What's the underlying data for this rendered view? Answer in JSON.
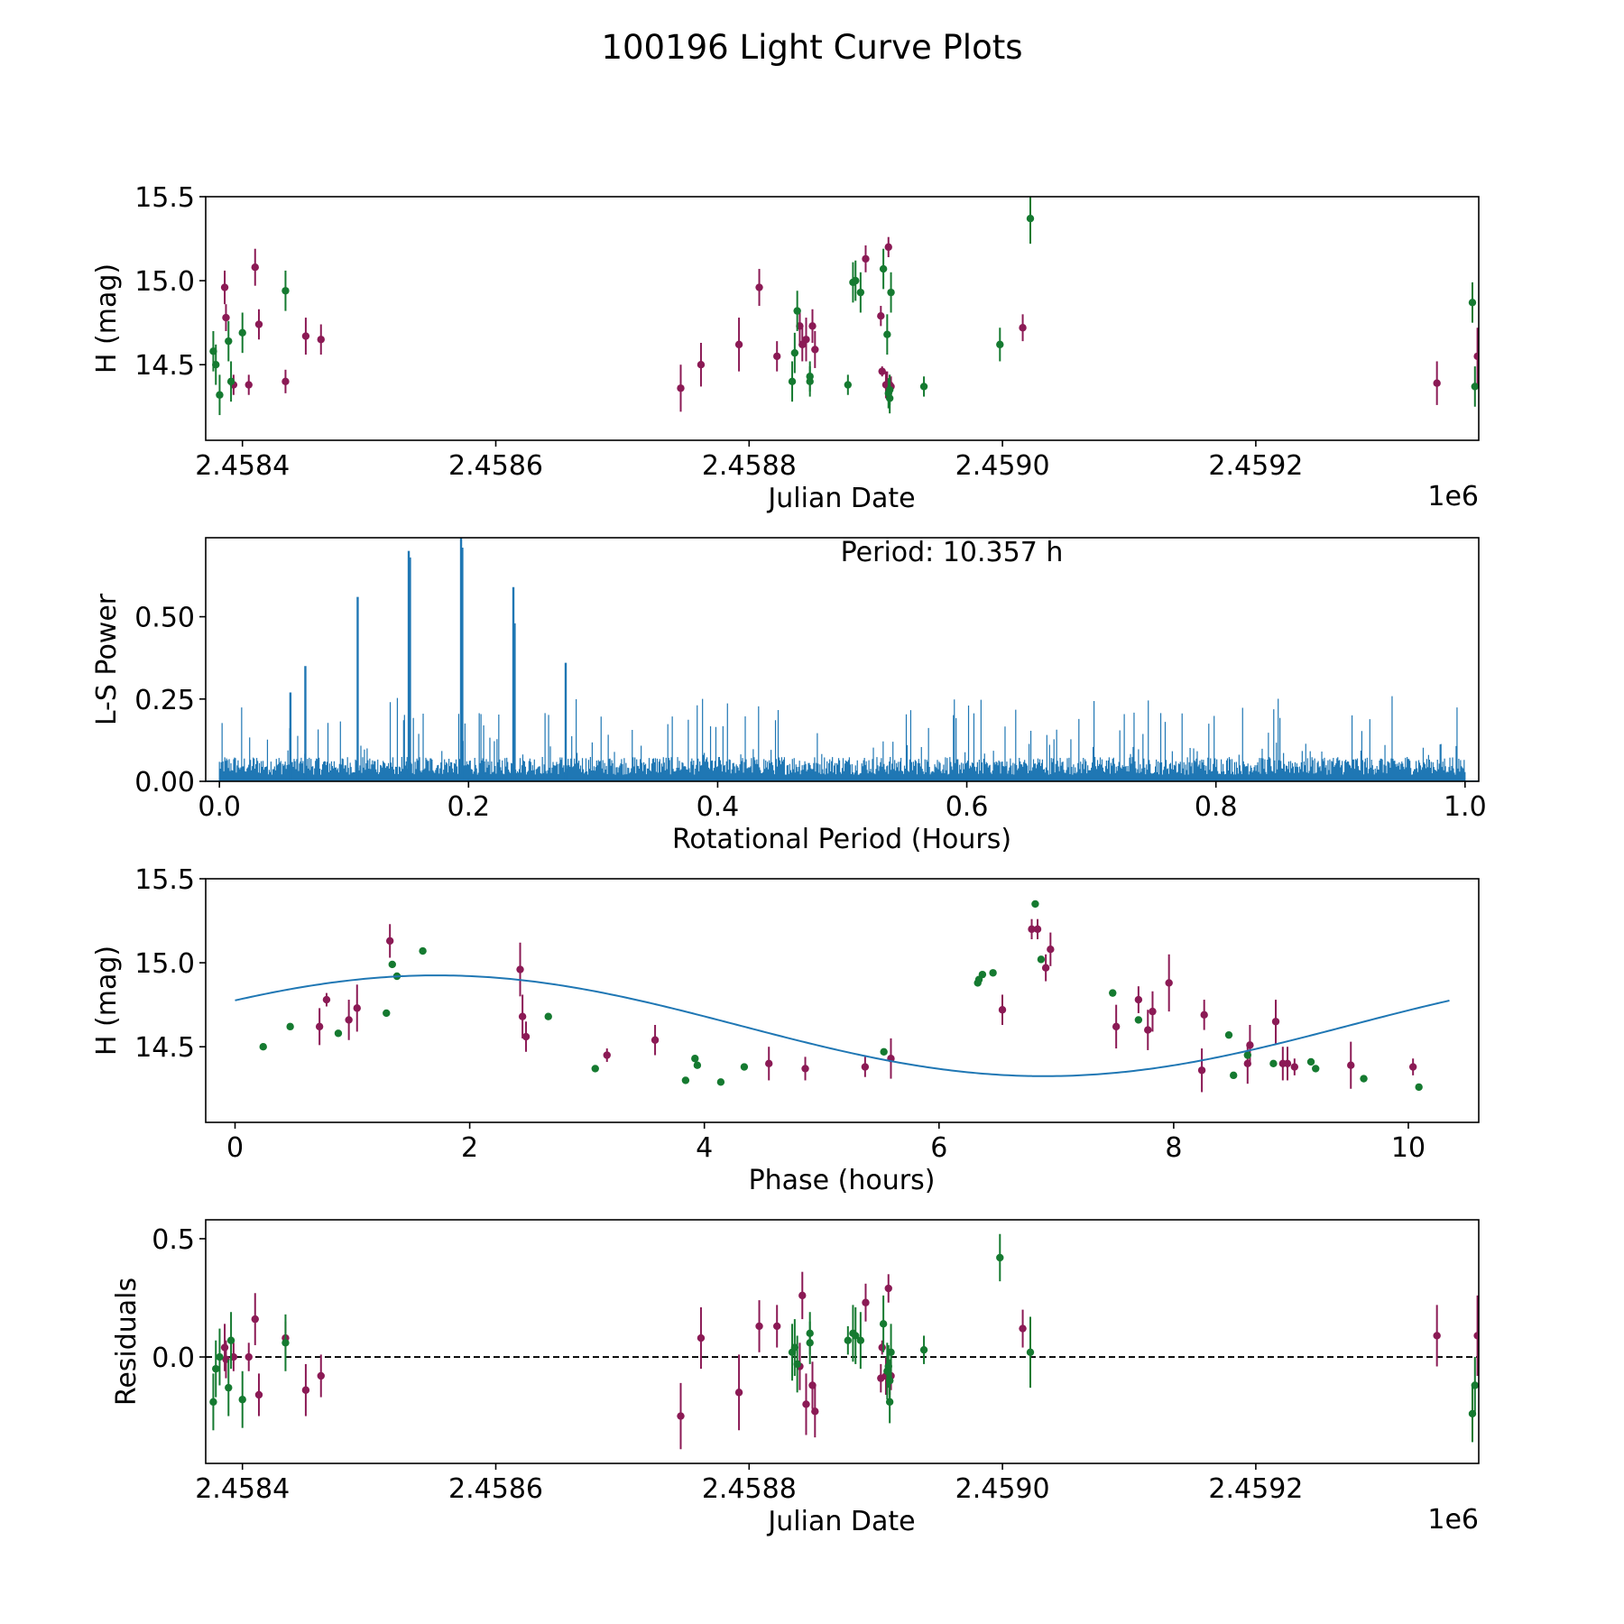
{
  "figure_title": "100196 Light Curve Plots",
  "colors": {
    "filter_a": "#8b1a55",
    "filter_b": "#157a30",
    "periodogram": "#1f77b4",
    "model": "#1f77b4",
    "zero_line": "#000000"
  },
  "chart_data": [
    {
      "id": "lightcurve",
      "type": "scatter",
      "xlabel": "Julian Date",
      "ylabel": "H (mag)",
      "x_offset_label": "1e6",
      "xlim": [
        2458371,
        2459376
      ],
      "ylim": [
        14.05,
        15.5
      ],
      "xticks": [
        2458400,
        2458600,
        2458800,
        2459000,
        2459200
      ],
      "xtick_labels": [
        "2.4584",
        "2.4586",
        "2.4588",
        "2.4590",
        "2.4592"
      ],
      "yticks": [
        14.5,
        15.0,
        15.5
      ],
      "ytick_labels": [
        "14.5",
        "15.0",
        "15.5"
      ],
      "series": [
        {
          "name": "filter A",
          "color": "#8b1a55",
          "x": [
            2458386,
            2458387,
            2458393,
            2458405,
            2458410,
            2458413,
            2458434,
            2458450,
            2458462,
            2458746,
            2458762,
            2458792,
            2458808,
            2458822,
            2458840,
            2458842,
            2458845,
            2458850,
            2458852,
            2458892,
            2458904,
            2458905,
            2458908,
            2458909,
            2458910,
            2458911,
            2458912,
            2459016,
            2459343,
            2459375,
            2459379,
            2459381,
            2459389,
            2459395,
            2459396,
            2459399,
            2459403,
            2459407
          ],
          "y": [
            14.96,
            14.78,
            14.38,
            14.38,
            15.08,
            14.74,
            14.4,
            14.67,
            14.65,
            14.36,
            14.5,
            14.62,
            14.96,
            14.55,
            14.73,
            14.62,
            14.65,
            14.73,
            14.59,
            15.13,
            14.79,
            14.46,
            14.38,
            14.38,
            15.2,
            14.38,
            14.37,
            14.72,
            14.39,
            14.55,
            14.75,
            14.39,
            14.4,
            14.44,
            14.41,
            14.89,
            14.5,
            14.51
          ],
          "err": [
            0.1,
            0.08,
            0.06,
            0.06,
            0.11,
            0.09,
            0.07,
            0.11,
            0.09,
            0.14,
            0.13,
            0.16,
            0.11,
            0.09,
            0.1,
            0.1,
            0.13,
            0.1,
            0.11,
            0.08,
            0.06,
            0.03,
            0.08,
            0.08,
            0.06,
            0.06,
            0.06,
            0.08,
            0.13,
            0.17,
            0.12,
            0.12,
            0.12,
            0.12,
            0.14,
            0.12,
            0.11,
            0.11
          ]
        },
        {
          "name": "filter B",
          "color": "#157a30",
          "x": [
            2458377,
            2458379,
            2458382,
            2458389,
            2458391,
            2458400,
            2458434,
            2458834,
            2458836,
            2458838,
            2458848,
            2458848,
            2458878,
            2458882,
            2458884,
            2458888,
            2458906,
            2458909,
            2458910,
            2458911,
            2458911,
            2458912,
            2458938,
            2458998,
            2459022,
            2459371,
            2459373,
            2459396,
            2459401
          ],
          "y": [
            14.58,
            14.5,
            14.32,
            14.64,
            14.4,
            14.69,
            14.94,
            14.4,
            14.57,
            14.82,
            14.43,
            14.4,
            14.38,
            14.99,
            15.0,
            14.93,
            15.07,
            14.68,
            14.33,
            14.35,
            14.3,
            14.93,
            14.37,
            14.62,
            15.37,
            14.87,
            14.37,
            14.26,
            14.31
          ],
          "err": [
            0.12,
            0.12,
            0.12,
            0.12,
            0.12,
            0.12,
            0.12,
            0.12,
            0.12,
            0.12,
            0.09,
            0.09,
            0.06,
            0.12,
            0.12,
            0.12,
            0.12,
            0.12,
            0.09,
            0.09,
            0.09,
            0.12,
            0.06,
            0.1,
            0.15,
            0.12,
            0.12,
            0.2,
            0.14
          ]
        }
      ]
    },
    {
      "id": "periodogram",
      "type": "line",
      "xlabel": "Rotational Period (Hours)",
      "ylabel": "L-S Power",
      "annotation": "Period: 10.357 h",
      "xlim": [
        -0.011,
        1.011
      ],
      "ylim": [
        0,
        0.74
      ],
      "xticks": [
        0.0,
        0.2,
        0.4,
        0.6,
        0.8,
        1.0
      ],
      "xtick_labels": [
        "0.0",
        "0.2",
        "0.4",
        "0.6",
        "0.8",
        "1.0"
      ],
      "yticks": [
        0.0,
        0.25,
        0.5
      ],
      "ytick_labels": [
        "0.00",
        "0.25",
        "0.50"
      ],
      "noise_floor": 0.08,
      "noise_max": 0.26,
      "peaks": {
        "x": [
          0.057,
          0.069,
          0.111,
          0.152,
          0.153,
          0.194,
          0.195,
          0.236,
          0.237,
          0.278
        ],
        "y": [
          0.27,
          0.35,
          0.56,
          0.7,
          0.68,
          0.74,
          0.71,
          0.59,
          0.48,
          0.36
        ]
      }
    },
    {
      "id": "phased",
      "type": "scatter",
      "xlabel": "Phase (hours)",
      "ylabel": "H (mag)",
      "xlim": [
        -0.25,
        10.6
      ],
      "ylim": [
        14.05,
        15.5
      ],
      "xticks": [
        0,
        2,
        4,
        6,
        8,
        10
      ],
      "xtick_labels": [
        "0",
        "2",
        "4",
        "6",
        "8",
        "10"
      ],
      "yticks": [
        14.5,
        15.0,
        15.5
      ],
      "ytick_labels": [
        "14.5",
        "15.0",
        "15.5"
      ],
      "model": {
        "period": 10.357,
        "mean": 14.625,
        "amp": 0.3,
        "peak_phase": 1.72,
        "x_range": [
          0,
          10.35
        ]
      },
      "series": [
        {
          "name": "filter A",
          "color": "#8b1a55",
          "x": [
            0.72,
            0.78,
            0.97,
            1.04,
            1.32,
            2.43,
            2.45,
            2.48,
            3.17,
            3.58,
            4.55,
            4.86,
            5.37,
            5.59,
            6.54,
            6.79,
            6.84,
            6.91,
            6.95,
            7.51,
            7.7,
            7.78,
            7.82,
            7.96,
            8.24,
            8.26,
            8.63,
            8.65,
            8.87,
            8.93,
            8.97,
            9.03,
            9.51,
            10.04
          ],
          "y": [
            14.62,
            14.78,
            14.66,
            14.73,
            15.13,
            14.96,
            14.68,
            14.56,
            14.45,
            14.54,
            14.4,
            14.37,
            14.38,
            14.43,
            14.72,
            15.2,
            15.2,
            14.97,
            15.08,
            14.62,
            14.78,
            14.6,
            14.71,
            14.88,
            14.36,
            14.69,
            14.4,
            14.51,
            14.65,
            14.4,
            14.4,
            14.38,
            14.39,
            14.38
          ],
          "err": [
            0.11,
            0.04,
            0.12,
            0.14,
            0.1,
            0.16,
            0.13,
            0.09,
            0.04,
            0.09,
            0.1,
            0.07,
            0.06,
            0.12,
            0.09,
            0.06,
            0.06,
            0.08,
            0.1,
            0.13,
            0.08,
            0.12,
            0.12,
            0.17,
            0.13,
            0.09,
            0.12,
            0.12,
            0.13,
            0.1,
            0.1,
            0.05,
            0.14,
            0.05
          ]
        },
        {
          "name": "filter B",
          "color": "#157a30",
          "x": [
            0.24,
            0.47,
            0.88,
            1.29,
            1.34,
            1.38,
            1.6,
            2.67,
            3.07,
            3.84,
            3.92,
            3.94,
            4.14,
            4.34,
            5.53,
            6.33,
            6.34,
            6.37,
            6.46,
            6.82,
            6.87,
            7.48,
            7.7,
            8.47,
            8.51,
            8.63,
            8.85,
            9.17,
            9.21,
            9.62,
            10.09
          ],
          "y": [
            14.5,
            14.62,
            14.58,
            14.7,
            14.99,
            14.92,
            15.07,
            14.68,
            14.37,
            14.3,
            14.43,
            14.39,
            14.29,
            14.38,
            14.47,
            14.88,
            14.9,
            14.93,
            14.94,
            15.35,
            15.02,
            14.82,
            14.66,
            14.57,
            14.33,
            14.45,
            14.4,
            14.41,
            14.37,
            14.31,
            14.26
          ]
        }
      ]
    },
    {
      "id": "residuals",
      "type": "scatter",
      "xlabel": "Julian Date",
      "ylabel": "Residuals",
      "x_offset_label": "1e6",
      "xlim": [
        2458371,
        2459376
      ],
      "ylim": [
        -0.45,
        0.58
      ],
      "xticks": [
        2458400,
        2458600,
        2458800,
        2459000,
        2459200
      ],
      "xtick_labels": [
        "2.4584",
        "2.4586",
        "2.4588",
        "2.4590",
        "2.4592"
      ],
      "yticks": [
        0.0,
        0.5
      ],
      "ytick_labels": [
        "0.0",
        "0.5"
      ],
      "zero_line": 0,
      "series": [
        {
          "name": "filter A",
          "color": "#8b1a55",
          "x": [
            2458386,
            2458387,
            2458393,
            2458405,
            2458410,
            2458413,
            2458434,
            2458450,
            2458462,
            2458746,
            2458762,
            2458792,
            2458808,
            2458822,
            2458840,
            2458842,
            2458845,
            2458850,
            2458852,
            2458892,
            2458904,
            2458905,
            2458908,
            2458909,
            2458910,
            2458911,
            2458912,
            2459016,
            2459343,
            2459375,
            2459379,
            2459381,
            2459389,
            2459395,
            2459396,
            2459399,
            2459403,
            2459407
          ],
          "y": [
            0.04,
            -0.01,
            0.0,
            0.0,
            0.16,
            -0.16,
            0.08,
            -0.14,
            -0.08,
            -0.25,
            0.08,
            -0.15,
            0.13,
            0.13,
            -0.04,
            0.26,
            -0.2,
            -0.12,
            -0.23,
            0.23,
            -0.09,
            0.04,
            -0.08,
            -0.08,
            0.29,
            -0.1,
            -0.08,
            0.12,
            0.09,
            0.09,
            -0.07,
            -0.07,
            -0.06,
            0.03,
            -0.16,
            0.16,
            -0.07,
            0.05
          ],
          "err": [
            0.1,
            0.08,
            0.06,
            0.06,
            0.11,
            0.09,
            0.07,
            0.11,
            0.09,
            0.14,
            0.13,
            0.16,
            0.11,
            0.09,
            0.1,
            0.1,
            0.13,
            0.1,
            0.11,
            0.08,
            0.06,
            0.03,
            0.08,
            0.08,
            0.06,
            0.06,
            0.06,
            0.08,
            0.13,
            0.17,
            0.12,
            0.12,
            0.12,
            0.12,
            0.14,
            0.12,
            0.11,
            0.11
          ]
        },
        {
          "name": "filter B",
          "color": "#157a30",
          "x": [
            2458377,
            2458379,
            2458382,
            2458389,
            2458391,
            2458400,
            2458434,
            2458834,
            2458836,
            2458838,
            2458848,
            2458848,
            2458878,
            2458882,
            2458884,
            2458888,
            2458906,
            2458909,
            2458910,
            2458911,
            2458911,
            2458912,
            2458938,
            2458998,
            2459022,
            2459371,
            2459373,
            2459396,
            2459401
          ],
          "y": [
            -0.19,
            -0.05,
            0.0,
            -0.13,
            0.07,
            -0.18,
            0.06,
            0.02,
            0.04,
            -0.03,
            0.06,
            0.1,
            0.07,
            0.1,
            0.09,
            0.07,
            0.14,
            -0.06,
            -0.04,
            -0.19,
            -0.1,
            0.02,
            0.03,
            0.42,
            0.02,
            -0.24,
            -0.12,
            -0.05,
            -0.07
          ],
          "err": [
            0.12,
            0.12,
            0.12,
            0.12,
            0.12,
            0.12,
            0.12,
            0.12,
            0.12,
            0.12,
            0.09,
            0.09,
            0.06,
            0.12,
            0.12,
            0.12,
            0.12,
            0.12,
            0.09,
            0.09,
            0.09,
            0.12,
            0.06,
            0.1,
            0.15,
            0.12,
            0.12,
            0.2,
            0.14
          ]
        }
      ]
    }
  ]
}
